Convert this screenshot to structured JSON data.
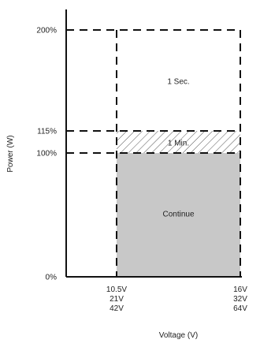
{
  "chart_data": {
    "type": "area",
    "title": "",
    "xlabel": "Voltage (V)",
    "ylabel": "Power (W)",
    "y_ticks": [
      {
        "value": 0,
        "label": "0%"
      },
      {
        "value": 100,
        "label": "100%"
      },
      {
        "value": 115,
        "label": "115%"
      },
      {
        "value": 200,
        "label": "200%"
      }
    ],
    "x_ticks": [
      {
        "position": "low",
        "lines": [
          "10.5V",
          "21V",
          "42V"
        ]
      },
      {
        "position": "high",
        "lines": [
          "16V",
          "32V",
          "64V"
        ]
      }
    ],
    "regions": [
      {
        "name": "Continue",
        "label": "Continue",
        "y_from": 0,
        "y_to": 100,
        "fill": "#c8c8c8",
        "style": "solid"
      },
      {
        "name": "1 Min.",
        "label": "1 Min.",
        "y_from": 100,
        "y_to": 115,
        "fill": "hatch",
        "style": "hatched"
      },
      {
        "name": "1 Sec.",
        "label": "1 Sec.",
        "y_from": 115,
        "y_to": 200,
        "fill": "none",
        "style": "dashed-outline"
      }
    ],
    "ylim": [
      0,
      220
    ],
    "grid": false,
    "legend": "none",
    "colors": {
      "continue_fill": "#c8c8c8",
      "line": "#111111",
      "hatch": "#555555"
    }
  }
}
